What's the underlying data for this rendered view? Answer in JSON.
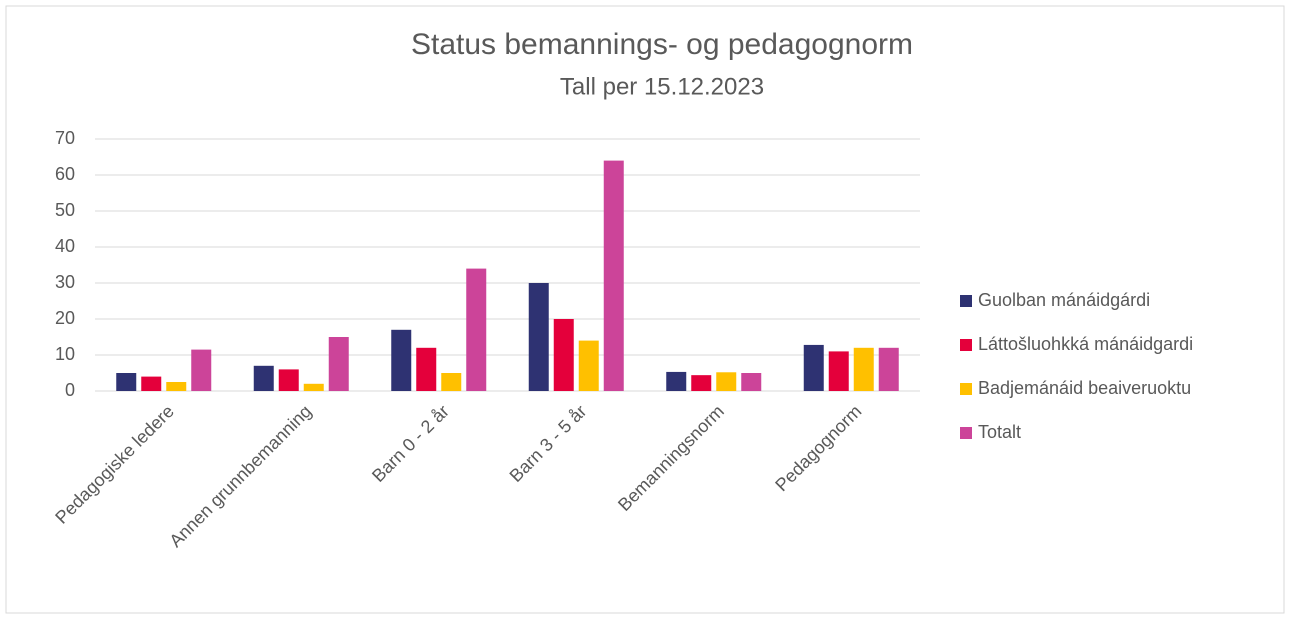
{
  "chart_data": {
    "type": "bar",
    "title": "Status bemannings- og pedagognorm",
    "subtitle": "Tall per 15.12.2023",
    "categories": [
      "Pedagogiske ledere",
      "Annen grunnbemanning",
      "Barn 0 - 2 år",
      "Barn 3 - 5 år",
      "Bemanningsnorm",
      "Pedagognorm"
    ],
    "series": [
      {
        "name": "Guolban mánáidgárdi",
        "color": "#2e3272",
        "values": [
          5,
          7,
          17,
          30,
          5.3,
          12.8
        ]
      },
      {
        "name": "Láttošluohkká mánáidgardi",
        "color": "#e4003b",
        "values": [
          4,
          6,
          12,
          20,
          4.4,
          11
        ]
      },
      {
        "name": "Badjemánáid beaiveruoktu",
        "color": "#ffc000",
        "values": [
          2.5,
          2,
          5,
          14,
          5.2,
          12
        ]
      },
      {
        "name": "Totalt",
        "color": "#cc4499",
        "values": [
          11.5,
          15,
          34,
          64,
          5,
          12
        ]
      }
    ],
    "ylim": [
      0,
      70
    ],
    "yticks": [
      0,
      10,
      20,
      30,
      40,
      50,
      60,
      70
    ],
    "grid": true,
    "legend": "right"
  }
}
